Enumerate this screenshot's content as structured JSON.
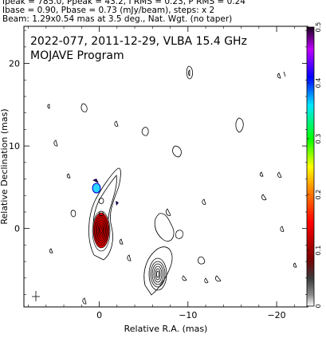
{
  "header": {
    "line1": "Ipeak = 785.0, Ppeak = 43.2, I RMS = 0.23, P RMS = 0.24",
    "line2": "Ibase = 0.90, Pbase = 0.73 (mJy/beam), steps: x 2",
    "line3": "Beam: 1.29x0.54 mas at 3.5 deg., Nat. Wgt. (no taper)"
  },
  "chart_data": {
    "type": "heatmap",
    "title": "2022-077, 2011-12-29, VLBA 15.4 GHz",
    "subtitle": "MOJAVE Program",
    "xlabel": "Relative R.A. (mas)",
    "ylabel": "Relative Declination (mas)",
    "xlim": [
      8.5,
      -23.5
    ],
    "ylim": [
      -9.5,
      24.5
    ],
    "x_ticks": [
      {
        "v": 0,
        "label": "0"
      },
      {
        "v": -10,
        "label": "−10"
      },
      {
        "v": -20,
        "label": "−20"
      }
    ],
    "y_ticks": [
      {
        "v": 0,
        "label": "0"
      },
      {
        "v": 10,
        "label": "10"
      },
      {
        "v": 20,
        "label": "20"
      }
    ],
    "colorbar": {
      "min": 0,
      "max": 0.5,
      "ticks": [
        {
          "v": 0,
          "label": "0"
        },
        {
          "v": 0.1,
          "label": "0.1"
        },
        {
          "v": 0.2,
          "label": "0.2"
        },
        {
          "v": 0.3,
          "label": "0.3"
        },
        {
          "v": 0.4,
          "label": "0.4"
        },
        {
          "v": 0.5,
          "label": "0.5"
        }
      ]
    },
    "core": {
      "x": 0,
      "y": 0
    },
    "beam": {
      "major": 1.29,
      "minor": 0.54,
      "pa": 3.5
    }
  }
}
